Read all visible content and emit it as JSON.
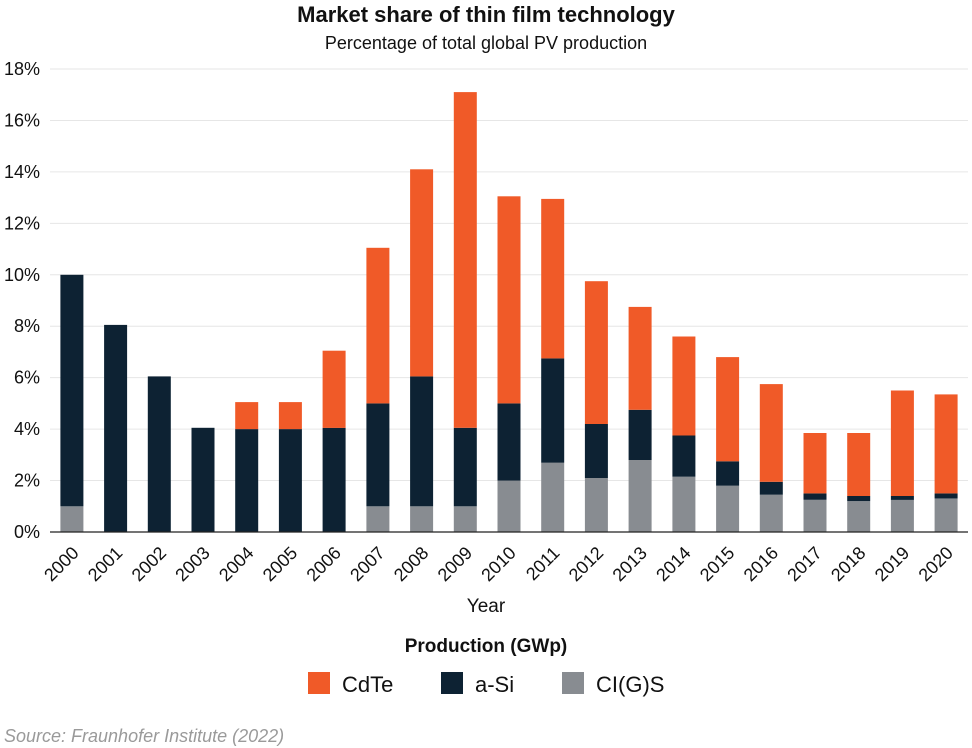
{
  "chart_data": {
    "type": "bar",
    "stacked": true,
    "title": "Market share of thin film technology",
    "subtitle": "Percentage of total global PV production",
    "xlabel": "Year",
    "ylabel": "",
    "ylim": [
      0,
      18
    ],
    "yticks": [
      "0%",
      "2%",
      "4%",
      "6%",
      "8%",
      "10%",
      "12%",
      "14%",
      "16%",
      "18%"
    ],
    "categories": [
      "2000",
      "2001",
      "2002",
      "2003",
      "2004",
      "2005",
      "2006",
      "2007",
      "2008",
      "2009",
      "2010",
      "2011",
      "2012",
      "2013",
      "2014",
      "2015",
      "2016",
      "2017",
      "2018",
      "2019",
      "2020"
    ],
    "series": [
      {
        "name": "CI(G)S",
        "color": "#888c91",
        "values": [
          1.0,
          0,
          0,
          0,
          0,
          0,
          0,
          1.0,
          1.0,
          1.0,
          2.0,
          2.7,
          2.1,
          2.8,
          2.15,
          1.8,
          1.45,
          1.25,
          1.2,
          1.25,
          1.3
        ]
      },
      {
        "name": "a-Si",
        "color": "#0d2233",
        "values": [
          9.0,
          8.05,
          6.05,
          4.05,
          4.0,
          4.0,
          4.05,
          4.0,
          5.05,
          3.05,
          3.0,
          4.05,
          2.1,
          1.95,
          1.6,
          0.95,
          0.5,
          0.25,
          0.2,
          0.15,
          0.2
        ]
      },
      {
        "name": "CdTe",
        "color": "#f05a28",
        "values": [
          0,
          0,
          0,
          0,
          1.05,
          1.05,
          3.0,
          6.05,
          8.05,
          13.05,
          8.05,
          6.2,
          5.55,
          4.0,
          3.85,
          4.05,
          3.8,
          2.35,
          2.45,
          4.1,
          3.85
        ]
      }
    ],
    "legend": {
      "title": "Production (GWp)",
      "position": "bottom",
      "order": [
        "CdTe",
        "a-Si",
        "CI(G)S"
      ]
    },
    "grid": true
  },
  "source": "Source: Fraunhofer Institute (2022)"
}
